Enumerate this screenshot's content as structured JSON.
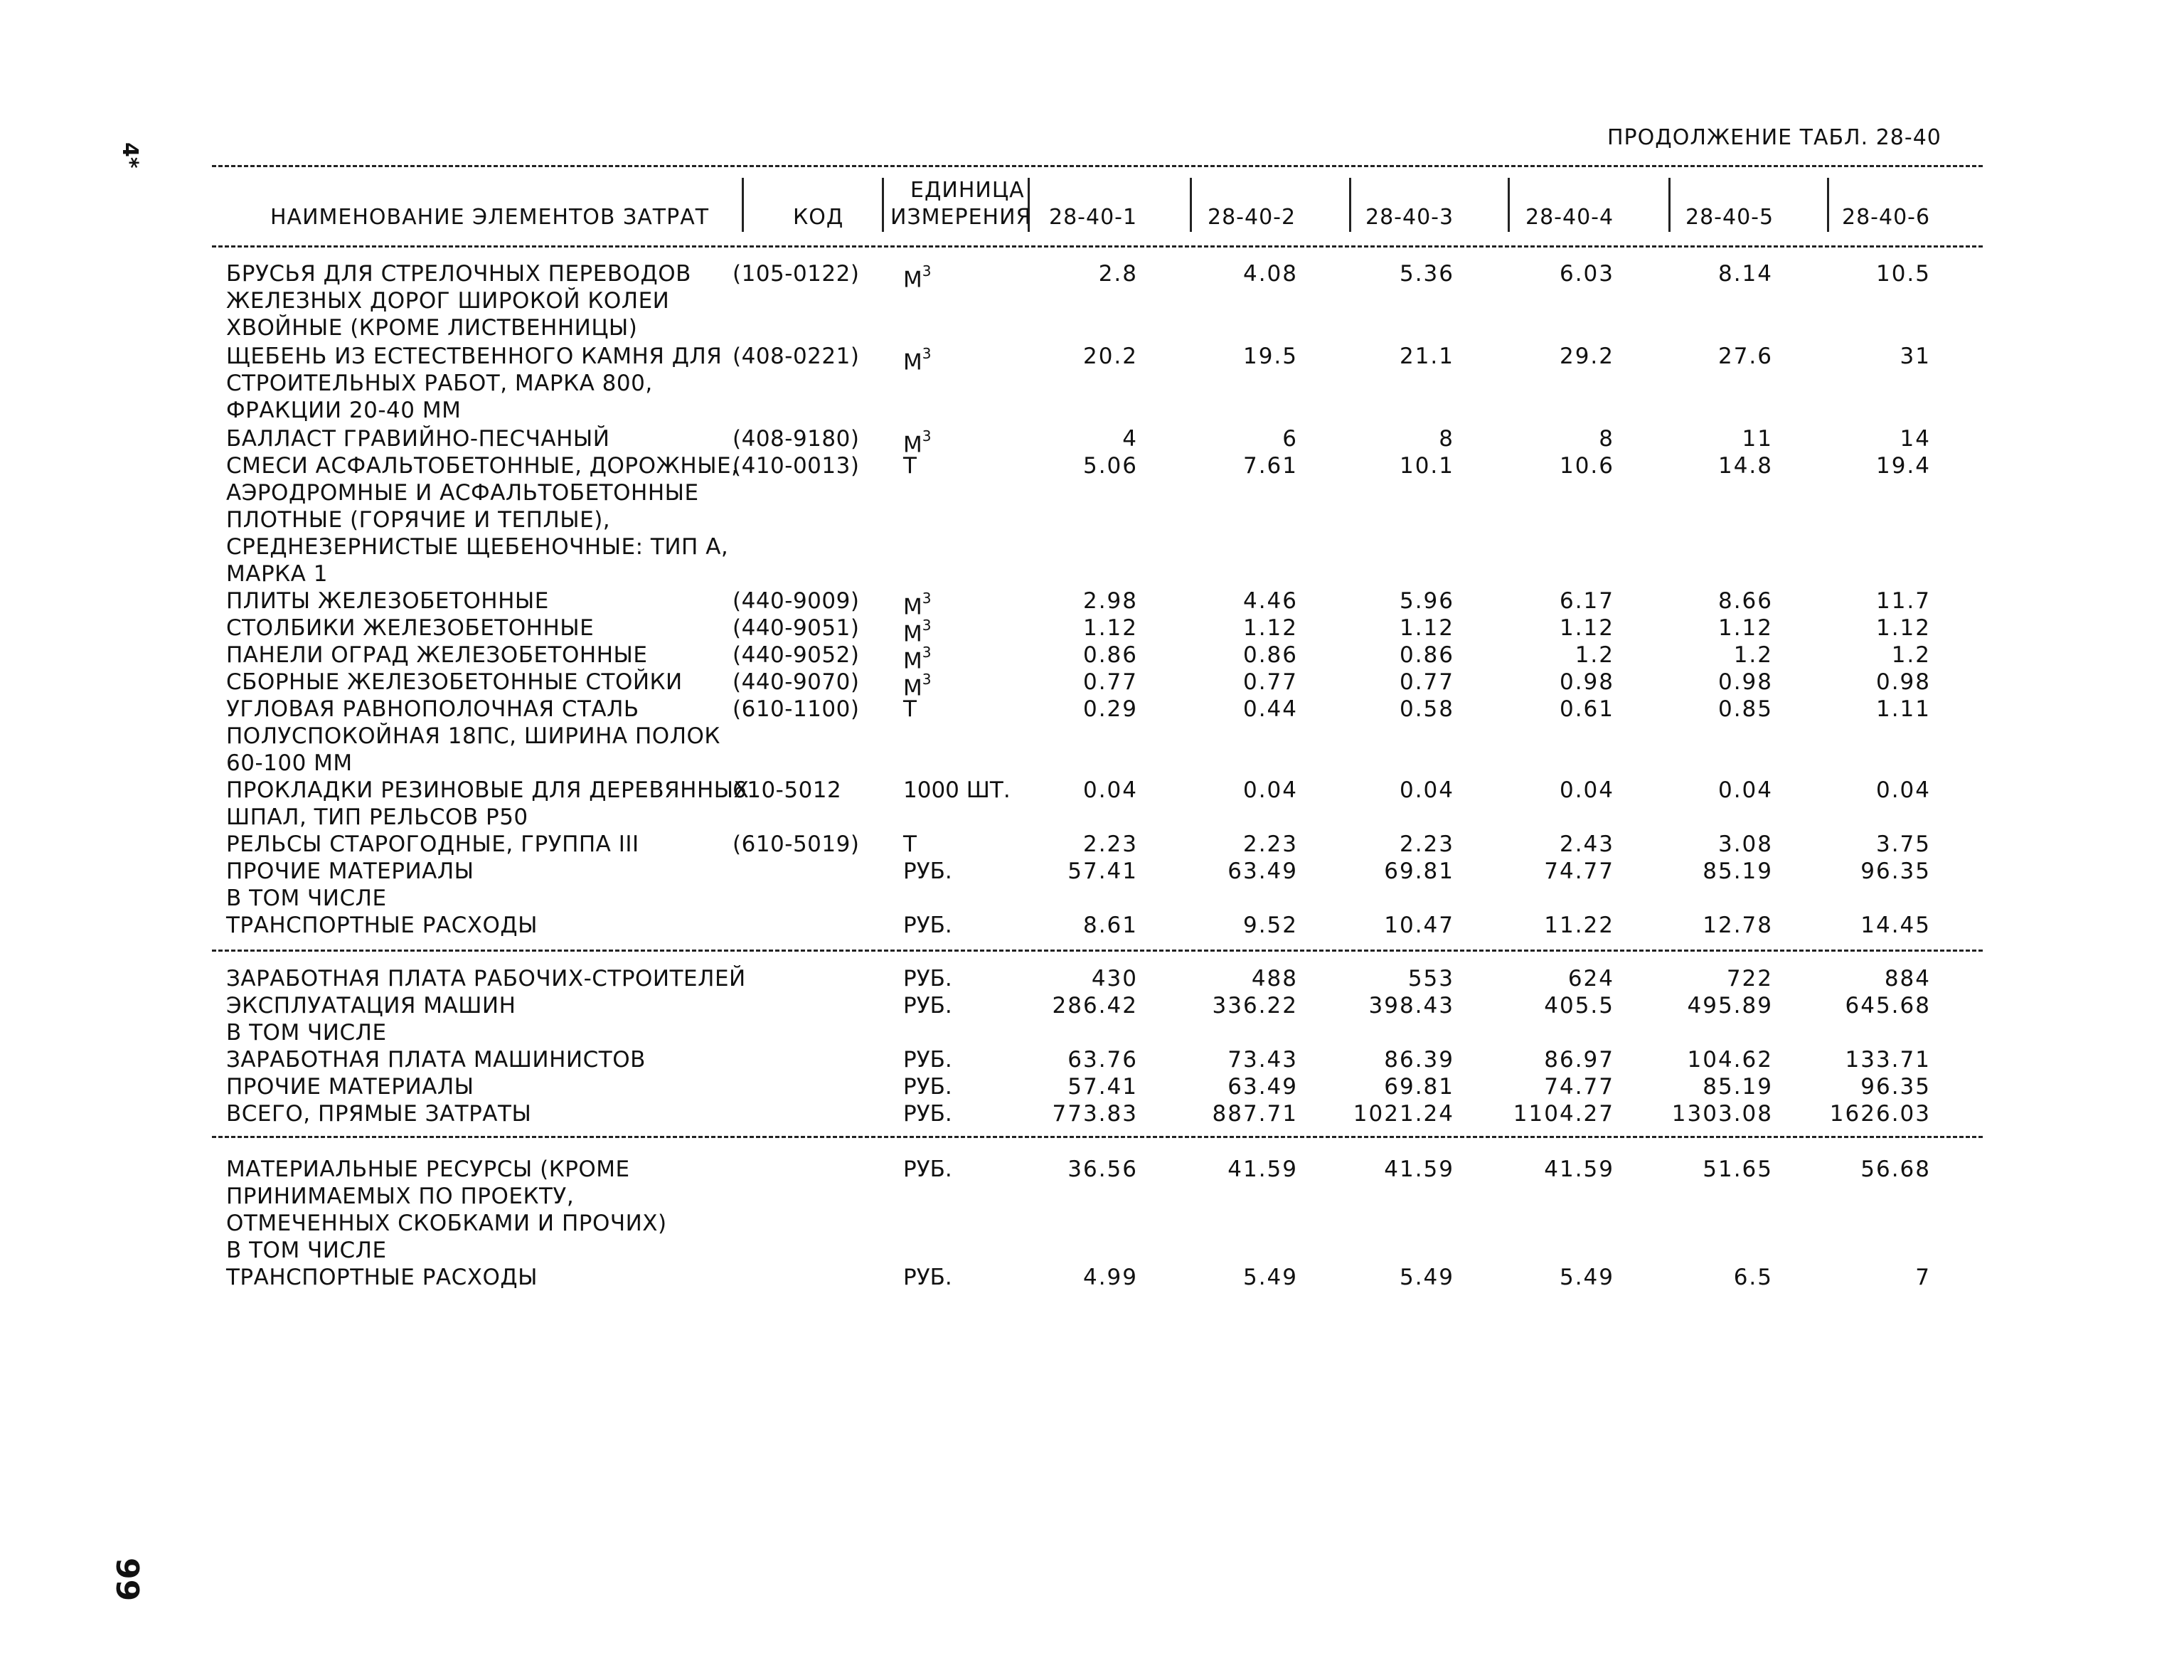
{
  "side_mark": "4*",
  "page_number": "99",
  "continuation_title": "ПРОДОЛЖЕНИЕ ТАБЛ. 28-40",
  "header": {
    "name": "НАИМЕНОВАНИЕ ЭЛЕМЕНТОВ ЗАТРАТ",
    "code": "КОД",
    "unit_line1": "ЕДИНИЦА",
    "unit_line2": "ИЗМЕРЕНИЯ",
    "columns": [
      "28-40-1",
      "28-40-2",
      "28-40-3",
      "28-40-4",
      "28-40-5",
      "28-40-6"
    ]
  },
  "rows": [
    {
      "name": "БРУСЬЯ ДЛЯ СТРЕЛОЧНЫХ ПЕРЕВОДОВ",
      "code": "(105-0122)",
      "unit": "М",
      "unit_sup": "3",
      "values": [
        "2.8",
        "4.08",
        "5.36",
        "6.03",
        "8.14",
        "10.5"
      ]
    },
    {
      "name": "ЖЕЛЕЗНЫХ ДОРОГ ШИРОКОЙ КОЛЕИ"
    },
    {
      "name": "ХВОЙНЫЕ (КРОМЕ ЛИСТВЕННИЦЫ)"
    },
    {
      "name": "ЩЕБЕНЬ ИЗ ЕСТЕСТВЕННОГО КАМНЯ ДЛЯ",
      "code": "(408-0221)",
      "unit": "М",
      "unit_sup": "3",
      "values": [
        "20.2",
        "19.5",
        "21.1",
        "29.2",
        "27.6",
        "31"
      ]
    },
    {
      "name": "СТРОИТЕЛЬНЫХ РАБОТ, МАРКА 800,"
    },
    {
      "name": "ФРАКЦИИ 20-40 ММ"
    },
    {
      "name": "БАЛЛАСТ ГРАВИЙНО-ПЕСЧАНЫЙ",
      "code": "(408-9180)",
      "unit": "М",
      "unit_sup": "3",
      "values": [
        "4",
        "6",
        "8",
        "8",
        "11",
        "14"
      ]
    },
    {
      "name": "СМЕСИ АСФАЛЬТОБЕТОННЫЕ, ДОРОЖНЫЕ,",
      "code": "(410-0013)",
      "unit": "Т",
      "values": [
        "5.06",
        "7.61",
        "10.1",
        "10.6",
        "14.8",
        "19.4"
      ]
    },
    {
      "name": "АЭРОДРОМНЫЕ И АСФАЛЬТОБЕТОННЫЕ"
    },
    {
      "name": "ПЛОТНЫЕ (ГОРЯЧИЕ И ТЕПЛЫЕ),"
    },
    {
      "name": "СРЕДНЕЗЕРНИСТЫЕ ЩЕБЕНОЧНЫЕ: ТИП А,"
    },
    {
      "name": "МАРКА 1"
    },
    {
      "name": "ПЛИТЫ ЖЕЛЕЗОБЕТОННЫЕ",
      "code": "(440-9009)",
      "unit": "М",
      "unit_sup": "3",
      "values": [
        "2.98",
        "4.46",
        "5.96",
        "6.17",
        "8.66",
        "11.7"
      ]
    },
    {
      "name": "СТОЛБИКИ ЖЕЛЕЗОБЕТОННЫЕ",
      "code": "(440-9051)",
      "unit": "М",
      "unit_sup": "3",
      "values": [
        "1.12",
        "1.12",
        "1.12",
        "1.12",
        "1.12",
        "1.12"
      ]
    },
    {
      "name": "ПАНЕЛИ ОГРАД ЖЕЛЕЗОБЕТОННЫЕ",
      "code": "(440-9052)",
      "unit": "М",
      "unit_sup": "3",
      "values": [
        "0.86",
        "0.86",
        "0.86",
        "1.2",
        "1.2",
        "1.2"
      ]
    },
    {
      "name": "СБОРНЫЕ ЖЕЛЕЗОБЕТОННЫЕ СТОЙКИ",
      "code": "(440-9070)",
      "unit": "М",
      "unit_sup": "3",
      "values": [
        "0.77",
        "0.77",
        "0.77",
        "0.98",
        "0.98",
        "0.98"
      ]
    },
    {
      "name": "УГЛОВАЯ РАВНОПОЛОЧНАЯ СТАЛЬ",
      "code": "(610-1100)",
      "unit": "Т",
      "values": [
        "0.29",
        "0.44",
        "0.58",
        "0.61",
        "0.85",
        "1.11"
      ]
    },
    {
      "name": "ПОЛУСПОКОЙНАЯ 18ПС, ШИРИНА ПОЛОК"
    },
    {
      "name": "60-100 ММ"
    },
    {
      "name": "ПРОКЛАДКИ РЕЗИНОВЫЕ ДЛЯ ДЕРЕВЯННЫХ",
      "code": "610-5012",
      "unit": "1000 ШТ.",
      "values": [
        "0.04",
        "0.04",
        "0.04",
        "0.04",
        "0.04",
        "0.04"
      ]
    },
    {
      "name": "ШПАЛ, ТИП РЕЛЬСОВ Р50"
    },
    {
      "name": "РЕЛЬСЫ СТАРОГОДНЫЕ, ГРУППА III",
      "code": "(610-5019)",
      "unit": "Т",
      "values": [
        "2.23",
        "2.23",
        "2.23",
        "2.43",
        "3.08",
        "3.75"
      ]
    },
    {
      "name": "ПРОЧИЕ МАТЕРИАЛЫ",
      "unit": "РУБ.",
      "values": [
        "57.41",
        "63.49",
        "69.81",
        "74.77",
        "85.19",
        "96.35"
      ]
    },
    {
      "name": " В ТОМ ЧИСЛЕ"
    },
    {
      "name": " ТРАНСПОРТНЫЕ РАСХОДЫ",
      "unit": "РУБ.",
      "values": [
        "8.61",
        "9.52",
        "10.47",
        "11.22",
        "12.78",
        "14.45"
      ]
    },
    {
      "name": "ЗАРАБОТНАЯ ПЛАТА РАБОЧИХ-СТРОИТЕЛЕЙ",
      "unit": "РУБ.",
      "values": [
        "430",
        "488",
        "553",
        "624",
        "722",
        "884"
      ]
    },
    {
      "name": "ЭКСПЛУАТАЦИЯ МАШИН",
      "unit": "РУБ.",
      "values": [
        "286.42",
        "336.22",
        "398.43",
        "405.5",
        "495.89",
        "645.68"
      ]
    },
    {
      "name": " В ТОМ ЧИСЛЕ"
    },
    {
      "name": " ЗАРАБОТНАЯ ПЛАТА МАШИНИСТОВ",
      "unit": "РУБ.",
      "values": [
        "63.76",
        "73.43",
        "86.39",
        "86.97",
        "104.62",
        "133.71"
      ]
    },
    {
      "name": "ПРОЧИЕ МАТЕРИАЛЫ",
      "unit": "РУБ.",
      "values": [
        "57.41",
        "63.49",
        "69.81",
        "74.77",
        "85.19",
        "96.35"
      ]
    },
    {
      "name": "ВСЕГО, ПРЯМЫЕ ЗАТРАТЫ",
      "unit": "РУБ.",
      "values": [
        "773.83",
        "887.71",
        "1021.24",
        "1104.27",
        "1303.08",
        "1626.03"
      ]
    },
    {
      "name": "МАТЕРИАЛЬНЫЕ РЕСУРСЫ (КРОМЕ",
      "unit": "РУБ.",
      "values": [
        "36.56",
        "41.59",
        "41.59",
        "41.59",
        "51.65",
        "56.68"
      ]
    },
    {
      "name": "ПРИНИМАЕМЫХ ПО ПРОЕКТУ,"
    },
    {
      "name": "ОТМЕЧЕННЫХ СКОБКАМИ И ПРОЧИХ)"
    },
    {
      "name": " В ТОМ ЧИСЛЕ"
    },
    {
      "name": " ТРАНСПОРТНЫЕ РАСХОДЫ",
      "unit": "РУБ.",
      "values": [
        "4.99",
        "5.49",
        "5.49",
        "5.49",
        "6.5",
        "7"
      ]
    }
  ]
}
